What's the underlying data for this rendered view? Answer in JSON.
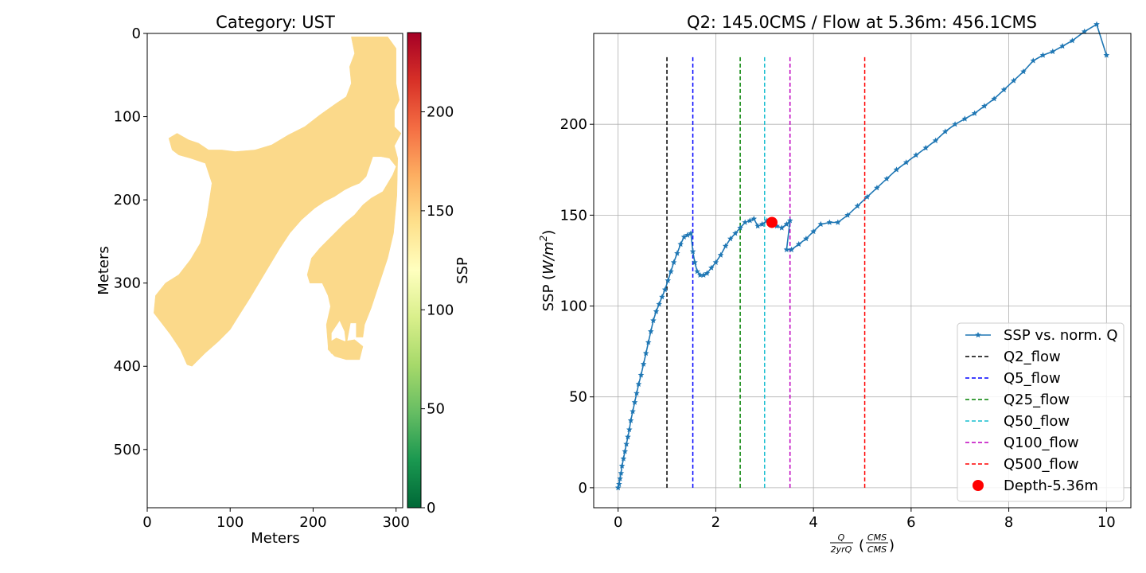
{
  "chart_data": [
    {
      "type": "heatmap",
      "title": "Category: UST",
      "xlabel": "Meters",
      "ylabel": "Meters",
      "xlim": [
        0,
        308
      ],
      "ylim": [
        570,
        0
      ],
      "x_ticks": [
        "0",
        "100",
        "200",
        "300"
      ],
      "y_ticks": [
        "0",
        "100",
        "200",
        "300",
        "400",
        "500"
      ],
      "region_value": 145,
      "region_color": "#fbd98a",
      "region_outline_meters": [
        [
          246,
          4
        ],
        [
          290,
          4
        ],
        [
          300,
          18
        ],
        [
          300,
          60
        ],
        [
          304,
          80
        ],
        [
          298,
          92
        ],
        [
          298,
          112
        ],
        [
          306,
          120
        ],
        [
          298,
          135
        ],
        [
          302,
          150
        ],
        [
          301,
          195
        ],
        [
          297,
          240
        ],
        [
          290,
          270
        ],
        [
          280,
          300
        ],
        [
          270,
          330
        ],
        [
          262,
          350
        ],
        [
          260,
          365
        ],
        [
          252,
          365
        ],
        [
          252,
          348
        ],
        [
          245,
          348
        ],
        [
          240,
          375
        ],
        [
          238,
          358
        ],
        [
          232,
          345
        ],
        [
          222,
          360
        ],
        [
          222,
          385
        ],
        [
          218,
          375
        ],
        [
          216,
          350
        ],
        [
          221,
          328
        ],
        [
          218,
          315
        ],
        [
          211,
          300
        ],
        [
          196,
          300
        ],
        [
          193,
          290
        ],
        [
          198,
          270
        ],
        [
          208,
          258
        ],
        [
          218,
          248
        ],
        [
          228,
          238
        ],
        [
          238,
          228
        ],
        [
          250,
          218
        ],
        [
          260,
          206
        ],
        [
          270,
          198
        ],
        [
          284,
          190
        ],
        [
          296,
          170
        ],
        [
          300,
          160
        ],
        [
          292,
          150
        ],
        [
          282,
          148
        ],
        [
          272,
          148
        ],
        [
          268,
          160
        ],
        [
          264,
          172
        ],
        [
          256,
          180
        ],
        [
          246,
          184
        ],
        [
          238,
          188
        ],
        [
          226,
          196
        ],
        [
          214,
          202
        ],
        [
          202,
          210
        ],
        [
          186,
          224
        ],
        [
          172,
          240
        ],
        [
          160,
          258
        ],
        [
          148,
          278
        ],
        [
          136,
          298
        ],
        [
          124,
          318
        ],
        [
          110,
          340
        ],
        [
          100,
          356
        ],
        [
          86,
          370
        ],
        [
          70,
          384
        ],
        [
          54,
          400
        ],
        [
          48,
          398
        ],
        [
          40,
          380
        ],
        [
          28,
          362
        ],
        [
          15,
          345
        ],
        [
          8,
          336
        ],
        [
          10,
          315
        ],
        [
          22,
          300
        ],
        [
          38,
          290
        ],
        [
          52,
          272
        ],
        [
          64,
          252
        ],
        [
          72,
          220
        ],
        [
          78,
          180
        ],
        [
          70,
          156
        ],
        [
          52,
          150
        ],
        [
          38,
          146
        ],
        [
          30,
          140
        ],
        [
          26,
          126
        ],
        [
          36,
          120
        ],
        [
          50,
          128
        ],
        [
          62,
          132
        ],
        [
          74,
          140
        ],
        [
          90,
          140
        ],
        [
          106,
          142
        ],
        [
          130,
          140
        ],
        [
          150,
          134
        ],
        [
          170,
          122
        ],
        [
          190,
          112
        ],
        [
          208,
          98
        ],
        [
          228,
          84
        ],
        [
          240,
          76
        ],
        [
          246,
          60
        ],
        [
          244,
          40
        ],
        [
          250,
          24
        ]
      ],
      "region_outline_meters_2": [
        [
          218,
          372
        ],
        [
          228,
          366
        ],
        [
          238,
          370
        ],
        [
          250,
          368
        ],
        [
          260,
          376
        ],
        [
          256,
          392
        ],
        [
          240,
          392
        ],
        [
          226,
          388
        ],
        [
          218,
          380
        ]
      ],
      "colorbar": {
        "label": "SSP",
        "min": 0,
        "max": 240,
        "ticks": [
          "0",
          "50",
          "100",
          "150",
          "200"
        ],
        "colormap": "RdYlGn_r",
        "stops": [
          "#006837",
          "#1a9850",
          "#66bd63",
          "#a6d96a",
          "#d9ef8b",
          "#ffffbf",
          "#fee08b",
          "#fdae61",
          "#f46d43",
          "#d73027",
          "#a50026"
        ]
      }
    },
    {
      "type": "line",
      "title": "Q2: 145.0CMS / Flow at 5.36m: 456.1CMS",
      "xlabel": "Q/2yrQ (CMS/CMS)",
      "xlabel_num": "Q",
      "xlabel_den": "2yrQ",
      "xlabel_unit_num": "CMS",
      "xlabel_unit_den": "CMS",
      "ylabel": "SSP (W/m²)",
      "ylabel_base": "SSP (",
      "ylabel_unit": "W/m",
      "ylabel_sup": "2",
      "ylabel_end": ")",
      "xlim": [
        -0.5,
        10.5
      ],
      "ylim": [
        -11,
        250
      ],
      "x_ticks": [
        0,
        2,
        4,
        6,
        8,
        10
      ],
      "y_ticks": [
        0,
        50,
        100,
        150,
        200
      ],
      "grid": true,
      "legend_position": "bottom-right",
      "series": [
        {
          "name": "SSP vs. norm. Q",
          "color": "#1f77b4",
          "marker": "star",
          "x": [
            0.0,
            0.02,
            0.04,
            0.06,
            0.08,
            0.11,
            0.14,
            0.17,
            0.2,
            0.23,
            0.26,
            0.3,
            0.34,
            0.38,
            0.42,
            0.47,
            0.52,
            0.57,
            0.62,
            0.67,
            0.72,
            0.78,
            0.84,
            0.9,
            0.96,
            1.02,
            1.08,
            1.14,
            1.21,
            1.28,
            1.35,
            1.42,
            1.49,
            1.53,
            1.57,
            1.62,
            1.68,
            1.75,
            1.82,
            1.91,
            2.0,
            2.1,
            2.2,
            2.3,
            2.4,
            2.5,
            2.6,
            2.7,
            2.78,
            2.86,
            2.95,
            3.05,
            3.15,
            3.25,
            3.35,
            3.45,
            3.52,
            3.45,
            3.55,
            3.7,
            3.85,
            4.0,
            4.15,
            4.33,
            4.5,
            4.7,
            4.9,
            5.1,
            5.3,
            5.5,
            5.7,
            5.9,
            6.1,
            6.3,
            6.5,
            6.7,
            6.9,
            7.1,
            7.3,
            7.5,
            7.7,
            7.9,
            8.1,
            8.3,
            8.5,
            8.7,
            8.9,
            9.1,
            9.3,
            9.55,
            9.8,
            10.0
          ],
          "y": [
            0,
            2,
            5,
            8,
            12,
            16,
            20,
            24,
            28,
            32,
            37,
            42,
            47,
            52,
            57,
            62,
            68,
            74,
            80,
            86,
            92,
            97,
            101,
            105,
            109,
            114,
            119,
            124,
            129,
            134,
            138,
            139,
            140,
            130,
            124,
            119,
            117,
            117,
            118,
            121,
            124,
            128,
            133,
            137,
            140,
            143,
            146,
            147,
            148,
            144,
            145,
            147,
            146,
            144,
            143,
            145,
            147,
            131,
            131,
            134,
            137,
            141,
            145,
            146,
            146,
            150,
            155,
            160,
            165,
            170,
            175,
            179,
            183,
            187,
            191,
            196,
            200,
            203,
            206,
            210,
            214,
            219,
            224,
            229,
            235,
            238,
            240,
            243,
            246,
            251,
            255,
            238
          ],
          "x_note": "shown values",
          "y_note": "shown values"
        }
      ],
      "vlines": [
        {
          "name": "Q2_flow",
          "x": 1.0,
          "color": "#000000"
        },
        {
          "name": "Q5_flow",
          "x": 1.53,
          "color": "#0000ff"
        },
        {
          "name": "Q25_flow",
          "x": 2.5,
          "color": "#008000"
        },
        {
          "name": "Q50_flow",
          "x": 3.0,
          "color": "#17becf"
        },
        {
          "name": "Q100_flow",
          "x": 3.52,
          "color": "#bf00bf"
        },
        {
          "name": "Q500_flow",
          "x": 5.05,
          "color": "#ff0000"
        }
      ],
      "vline_y_range": [
        0,
        238
      ],
      "point": {
        "name": "Depth-5.36m",
        "x": 3.15,
        "y": 146,
        "color": "#ff0000"
      }
    }
  ]
}
